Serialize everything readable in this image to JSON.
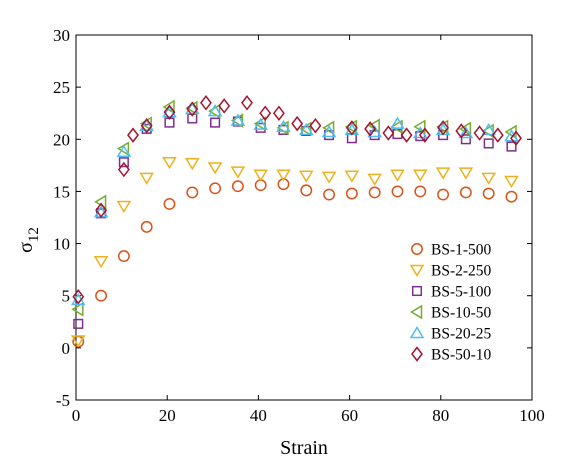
{
  "chart_data": {
    "type": "scatter",
    "xlabel": "Strain",
    "ylabel_main": "σ",
    "ylabel_sub": "12",
    "xlim": [
      0,
      100
    ],
    "ylim": [
      -5,
      30
    ],
    "xticks": [
      0,
      20,
      40,
      60,
      80,
      100
    ],
    "yticks": [
      -5,
      0,
      5,
      10,
      15,
      20,
      25,
      30
    ],
    "grid": false,
    "legend_position": "lower-right",
    "series": [
      {
        "name": "BS-1-500",
        "marker": "circle",
        "color": "#D95319",
        "x": [
          0.5,
          5.5,
          10.5,
          15.5,
          20.5,
          25.5,
          30.5,
          35.5,
          40.5,
          45.5,
          50.5,
          55.5,
          60.5,
          65.5,
          70.5,
          75.5,
          80.5,
          85.5,
          90.5,
          95.5
        ],
        "y": [
          0.6,
          5.0,
          8.8,
          11.6,
          13.8,
          14.9,
          15.3,
          15.5,
          15.6,
          15.7,
          15.1,
          14.7,
          14.8,
          14.9,
          15.0,
          15.0,
          14.7,
          14.9,
          14.8,
          14.5
        ]
      },
      {
        "name": "BS-2-250",
        "marker": "triangle-down",
        "color": "#EDB120",
        "x": [
          0.5,
          5.5,
          10.5,
          15.5,
          20.5,
          25.5,
          30.5,
          35.5,
          40.5,
          45.5,
          50.5,
          55.5,
          60.5,
          65.5,
          70.5,
          75.5,
          80.5,
          85.5,
          90.5,
          95.5
        ],
        "y": [
          0.7,
          8.3,
          13.6,
          16.3,
          17.8,
          17.7,
          17.3,
          16.9,
          16.6,
          16.6,
          16.5,
          16.4,
          16.5,
          16.2,
          16.6,
          16.6,
          16.8,
          16.8,
          16.3,
          16.0
        ]
      },
      {
        "name": "BS-5-100",
        "marker": "square",
        "color": "#7E2F8E",
        "x": [
          0.5,
          5.5,
          10.5,
          15.5,
          20.5,
          25.5,
          30.5,
          35.5,
          40.5,
          45.5,
          50.5,
          55.5,
          60.5,
          65.5,
          70.5,
          75.5,
          80.5,
          85.5,
          90.5,
          95.5
        ],
        "y": [
          2.3,
          12.9,
          17.8,
          21.0,
          21.6,
          22.0,
          21.6,
          21.7,
          21.1,
          20.9,
          20.8,
          20.4,
          20.1,
          20.4,
          20.5,
          20.3,
          20.4,
          20.0,
          19.6,
          19.3
        ]
      },
      {
        "name": "BS-10-50",
        "marker": "triangle-left",
        "color": "#77AC30",
        "x": [
          0.5,
          5.5,
          10.5,
          15.5,
          20.5,
          25.5,
          30.5,
          35.5,
          40.5,
          45.5,
          50.5,
          55.5,
          60.5,
          65.5,
          70.5,
          75.5,
          80.5,
          85.5,
          90.5,
          95.5
        ],
        "y": [
          3.7,
          14.0,
          19.1,
          21.5,
          23.1,
          23.0,
          22.7,
          21.8,
          21.5,
          21.1,
          21.0,
          21.1,
          21.2,
          21.3,
          21.2,
          21.2,
          21.2,
          21.0,
          20.8,
          20.7
        ]
      },
      {
        "name": "BS-20-25",
        "marker": "triangle-up",
        "color": "#4DBEEE",
        "x": [
          0.5,
          5.5,
          10.5,
          15.5,
          20.5,
          25.5,
          30.5,
          35.5,
          40.5,
          45.5,
          50.5,
          55.5,
          60.5,
          65.5,
          70.5,
          75.5,
          80.5,
          85.5,
          90.5,
          95.5
        ],
        "y": [
          4.6,
          13.0,
          18.8,
          21.3,
          22.6,
          22.9,
          22.7,
          21.8,
          21.4,
          21.2,
          20.9,
          20.7,
          20.9,
          20.7,
          21.5,
          20.6,
          20.9,
          20.6,
          20.9,
          20.3
        ]
      },
      {
        "name": "BS-50-10",
        "marker": "diamond",
        "color": "#A2142F",
        "x": [
          0.5,
          5.5,
          10.5,
          12.5,
          15.5,
          20.5,
          25.5,
          28.5,
          32.5,
          37.5,
          41.5,
          44.5,
          48.5,
          52.5,
          60.5,
          64.5,
          68.5,
          72.5,
          76.5,
          80.5,
          84.5,
          88.5,
          92.5,
          96.5
        ],
        "y": [
          4.9,
          13.2,
          17.1,
          20.4,
          21.3,
          22.6,
          22.9,
          23.5,
          23.2,
          23.5,
          22.5,
          22.5,
          21.5,
          21.3,
          21.1,
          21.0,
          20.6,
          20.4,
          20.4,
          21.1,
          20.8,
          20.6,
          20.4,
          20.1
        ]
      }
    ]
  }
}
